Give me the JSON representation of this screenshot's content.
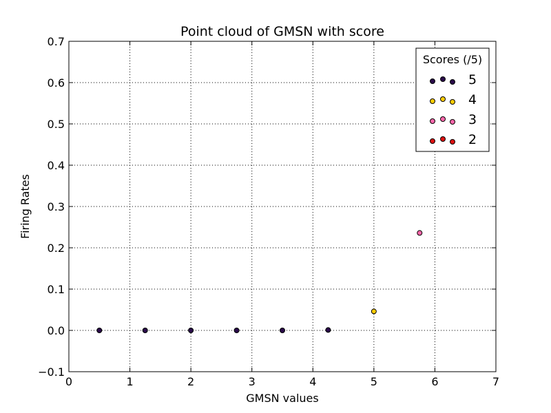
{
  "chart_data": {
    "type": "scatter",
    "title": "Point cloud of GMSN with score",
    "xlabel": "GMSN values",
    "ylabel": "Firing Rates",
    "xlim": [
      0,
      7
    ],
    "ylim": [
      -0.1,
      0.7
    ],
    "xticks": [
      "0",
      "1",
      "2",
      "3",
      "4",
      "5",
      "6",
      "7"
    ],
    "yticks": [
      "−0.1",
      "0.0",
      "0.1",
      "0.2",
      "0.3",
      "0.4",
      "0.5",
      "0.6",
      "0.7"
    ],
    "grid": true,
    "legend_title": "Scores (/5)",
    "legend_position": "top-right",
    "series": [
      {
        "name": "5",
        "color": "#2a0a4a",
        "x": [
          0.5,
          1.25,
          2.0,
          2.75,
          3.5,
          4.25
        ],
        "y": [
          0.0,
          0.0,
          0.0,
          0.0,
          0.0,
          0.001
        ]
      },
      {
        "name": "4",
        "color": "#ffcc00",
        "x": [
          5.0
        ],
        "y": [
          0.046
        ]
      },
      {
        "name": "3",
        "color": "#ff66aa",
        "x": [
          5.75
        ],
        "y": [
          0.236
        ]
      },
      {
        "name": "2",
        "color": "#dd1111",
        "x": [],
        "y": []
      }
    ]
  }
}
